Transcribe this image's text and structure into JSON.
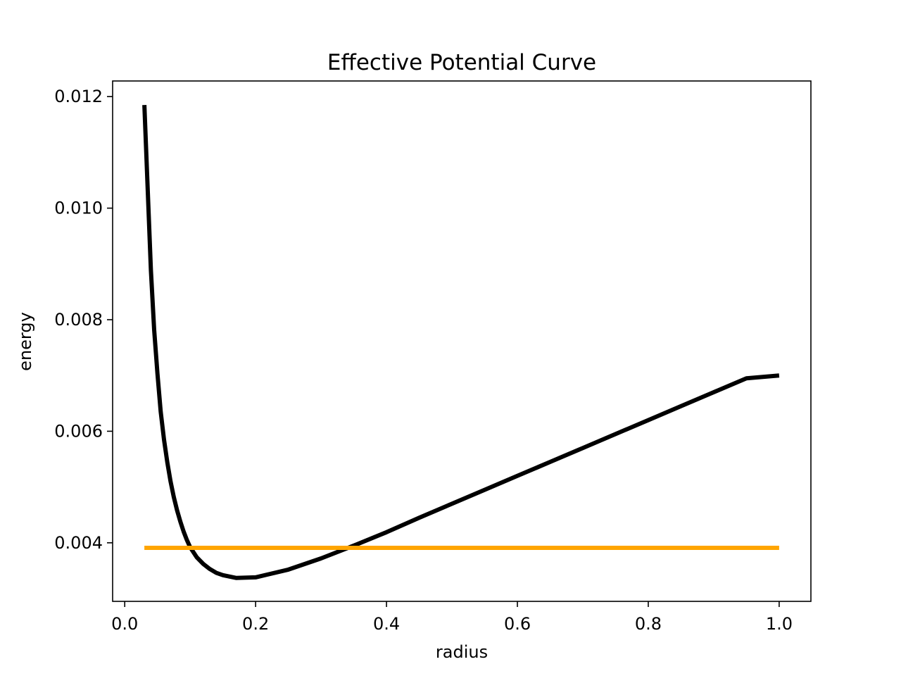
{
  "chart_data": {
    "type": "line",
    "title": "Effective Potential Curve",
    "xlabel": "radius",
    "ylabel": "energy",
    "xlim": [
      -0.0185,
      1.0485
    ],
    "ylim": [
      0.00295,
      0.01228
    ],
    "xticks": [
      0.0,
      0.2,
      0.4,
      0.6,
      0.8,
      1.0
    ],
    "xtick_labels": [
      "0.0",
      "0.2",
      "0.4",
      "0.6",
      "0.8",
      "1.0"
    ],
    "yticks": [
      0.004,
      0.006,
      0.008,
      0.01,
      0.012
    ],
    "ytick_labels": [
      "0.004",
      "0.006",
      "0.008",
      "0.010",
      "0.012"
    ],
    "grid": false,
    "legend": "none",
    "series": [
      {
        "color": "#000000",
        "x": [
          0.03,
          0.035,
          0.04,
          0.045,
          0.05,
          0.055,
          0.06,
          0.065,
          0.07,
          0.075,
          0.08,
          0.085,
          0.09,
          0.095,
          0.1,
          0.11,
          0.12,
          0.13,
          0.14,
          0.15,
          0.17,
          0.2,
          0.25,
          0.3,
          0.35,
          0.4,
          0.45,
          0.5,
          0.55,
          0.6,
          0.65,
          0.7,
          0.75,
          0.8,
          0.85,
          0.9,
          0.95,
          1.0
        ],
        "y": [
          0.01185,
          0.01038,
          0.00888,
          0.00782,
          0.00703,
          0.00635,
          0.00585,
          0.00545,
          0.0051,
          0.00482,
          0.00458,
          0.00438,
          0.0042,
          0.00405,
          0.00392,
          0.00374,
          0.00362,
          0.00353,
          0.00346,
          0.00342,
          0.00337,
          0.00338,
          0.00352,
          0.00372,
          0.00395,
          0.00419,
          0.00445,
          0.0047,
          0.00495,
          0.0052,
          0.00545,
          0.0057,
          0.00595,
          0.0062,
          0.00645,
          0.0067,
          0.00695,
          0.007
        ]
      },
      {
        "color": "#ffa500",
        "x": [
          0.03,
          1.0
        ],
        "y": [
          0.00391,
          0.00391
        ]
      }
    ]
  }
}
